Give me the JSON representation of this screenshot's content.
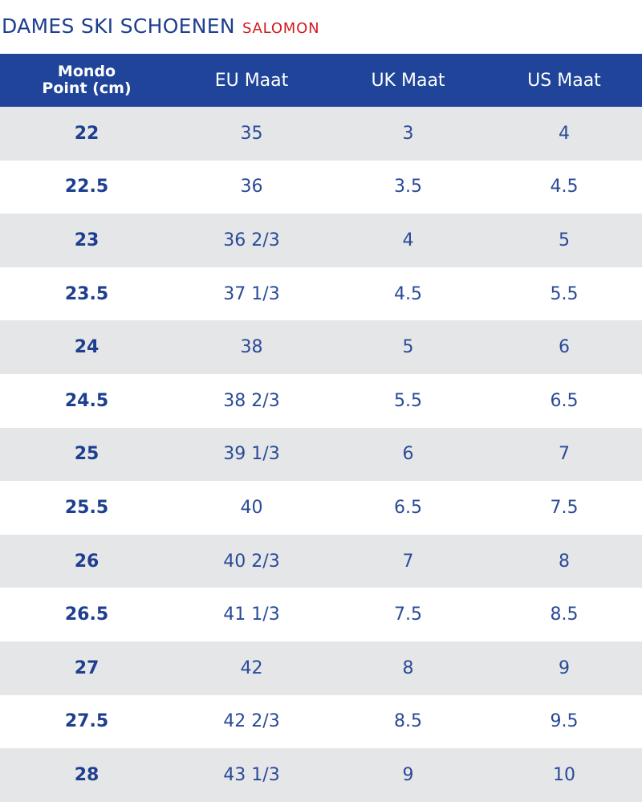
{
  "header": {
    "title": "DAMES SKI SCHOENEN",
    "brand": "SALOMON"
  },
  "table": {
    "columns": [
      "Mondo Point (cm)",
      "EU Maat",
      "UK Maat",
      "US Maat"
    ],
    "column_mondo_line1": "Mondo",
    "column_mondo_line2": "Point (cm)",
    "rows": [
      {
        "mondo": "22",
        "eu": "35",
        "uk": "3",
        "us": "4"
      },
      {
        "mondo": "22.5",
        "eu": "36",
        "uk": "3.5",
        "us": "4.5"
      },
      {
        "mondo": "23",
        "eu": "36 2/3",
        "uk": "4",
        "us": "5"
      },
      {
        "mondo": "23.5",
        "eu": "37 1/3",
        "uk": "4.5",
        "us": "5.5"
      },
      {
        "mondo": "24",
        "eu": "38",
        "uk": "5",
        "us": "6"
      },
      {
        "mondo": "24.5",
        "eu": "38 2/3",
        "uk": "5.5",
        "us": "6.5"
      },
      {
        "mondo": "25",
        "eu": "39 1/3",
        "uk": "6",
        "us": "7"
      },
      {
        "mondo": "25.5",
        "eu": "40",
        "uk": "6.5",
        "us": "7.5"
      },
      {
        "mondo": "26",
        "eu": "40 2/3",
        "uk": "7",
        "us": "8"
      },
      {
        "mondo": "26.5",
        "eu": "41 1/3",
        "uk": "7.5",
        "us": "8.5"
      },
      {
        "mondo": "27",
        "eu": "42",
        "uk": "8",
        "us": "9"
      },
      {
        "mondo": "27.5",
        "eu": "42 2/3",
        "uk": "8.5",
        "us": "9.5"
      },
      {
        "mondo": "28",
        "eu": "43 1/3",
        "uk": "9",
        "us": "10"
      }
    ]
  },
  "colors": {
    "header_bg": "#1f4499",
    "text_blue": "#1e3f8f",
    "brand_red": "#d21a1f",
    "row_alt": "#e5e6e8"
  }
}
